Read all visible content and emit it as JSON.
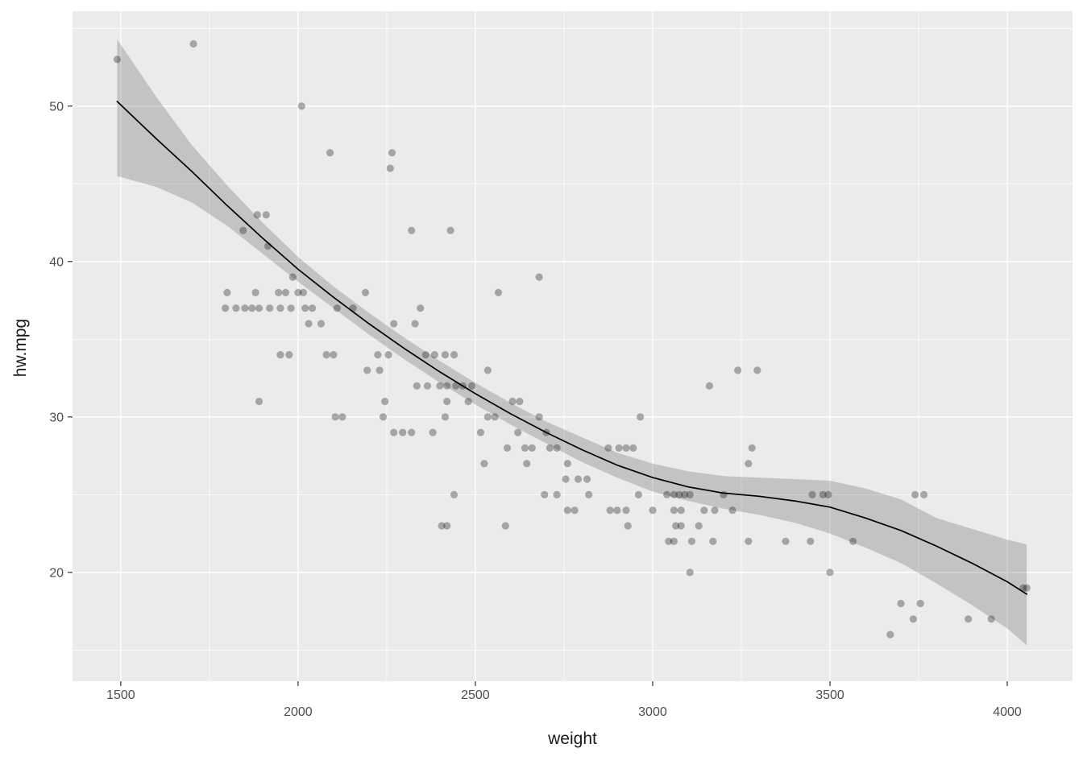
{
  "chart_data": {
    "type": "scatter",
    "title": "",
    "xlabel": "weight",
    "ylabel": "hw.mpg",
    "x_domain": [
      1364,
      4184
    ],
    "y_domain": [
      13,
      56.1
    ],
    "x_ticks": {
      "major": [
        1500,
        2000,
        2500,
        3000,
        3500,
        4000
      ],
      "labels": [
        "1500",
        "2000",
        "2500",
        "3000",
        "3500",
        "4000"
      ],
      "label_rows": [
        0,
        1,
        0,
        1,
        0,
        1
      ],
      "minor": [
        1750,
        2250,
        2750,
        3250,
        3750
      ]
    },
    "y_ticks": {
      "major": [
        20,
        30,
        40,
        50
      ],
      "labels": [
        "20",
        "30",
        "40",
        "50"
      ],
      "minor": [
        15,
        25,
        35,
        45,
        55
      ]
    },
    "legend": null,
    "grid": "on",
    "points": [
      [
        1490,
        53
      ],
      [
        1705,
        54
      ],
      [
        2010,
        50
      ],
      [
        2090,
        47
      ],
      [
        2265,
        47
      ],
      [
        2260,
        46
      ],
      [
        1885,
        43
      ],
      [
        1910,
        43
      ],
      [
        1845,
        42
      ],
      [
        2320,
        42
      ],
      [
        2430,
        42
      ],
      [
        1915,
        41
      ],
      [
        1985,
        39
      ],
      [
        2680,
        39
      ],
      [
        1800,
        38
      ],
      [
        1880,
        38
      ],
      [
        1945,
        38
      ],
      [
        1965,
        38
      ],
      [
        2000,
        38
      ],
      [
        2015,
        38
      ],
      [
        2190,
        38
      ],
      [
        2565,
        38
      ],
      [
        1795,
        37
      ],
      [
        1825,
        37
      ],
      [
        1850,
        37
      ],
      [
        1870,
        37
      ],
      [
        1890,
        37
      ],
      [
        1920,
        37
      ],
      [
        1950,
        37
      ],
      [
        1980,
        37
      ],
      [
        2020,
        37
      ],
      [
        2040,
        37
      ],
      [
        2110,
        37
      ],
      [
        2155,
        37
      ],
      [
        2345,
        37
      ],
      [
        2030,
        36
      ],
      [
        2065,
        36
      ],
      [
        2270,
        36
      ],
      [
        2330,
        36
      ],
      [
        1950,
        34
      ],
      [
        1975,
        34
      ],
      [
        2080,
        34
      ],
      [
        2100,
        34
      ],
      [
        2225,
        34
      ],
      [
        2255,
        34
      ],
      [
        2360,
        34
      ],
      [
        2385,
        34
      ],
      [
        2415,
        34
      ],
      [
        2440,
        34
      ],
      [
        2195,
        33
      ],
      [
        2230,
        33
      ],
      [
        2535,
        33
      ],
      [
        3240,
        33
      ],
      [
        3295,
        33
      ],
      [
        2335,
        32
      ],
      [
        2365,
        32
      ],
      [
        2400,
        32
      ],
      [
        2420,
        32
      ],
      [
        2445,
        32
      ],
      [
        2465,
        32
      ],
      [
        2490,
        32
      ],
      [
        3160,
        32
      ],
      [
        1890,
        31
      ],
      [
        2245,
        31
      ],
      [
        2420,
        31
      ],
      [
        2480,
        31
      ],
      [
        2605,
        31
      ],
      [
        2625,
        31
      ],
      [
        2105,
        30
      ],
      [
        2125,
        30
      ],
      [
        2240,
        30
      ],
      [
        2415,
        30
      ],
      [
        2535,
        30
      ],
      [
        2555,
        30
      ],
      [
        2680,
        30
      ],
      [
        2965,
        30
      ],
      [
        2270,
        29
      ],
      [
        2295,
        29
      ],
      [
        2320,
        29
      ],
      [
        2380,
        29
      ],
      [
        2515,
        29
      ],
      [
        2620,
        29
      ],
      [
        2700,
        29
      ],
      [
        2590,
        28
      ],
      [
        2640,
        28
      ],
      [
        2660,
        28
      ],
      [
        2710,
        28
      ],
      [
        2730,
        28
      ],
      [
        2875,
        28
      ],
      [
        2905,
        28
      ],
      [
        2925,
        28
      ],
      [
        2945,
        28
      ],
      [
        3280,
        28
      ],
      [
        2525,
        27
      ],
      [
        2645,
        27
      ],
      [
        2760,
        27
      ],
      [
        3270,
        27
      ],
      [
        2755,
        26
      ],
      [
        2790,
        26
      ],
      [
        2815,
        26
      ],
      [
        2440,
        25
      ],
      [
        2695,
        25
      ],
      [
        2730,
        25
      ],
      [
        2820,
        25
      ],
      [
        2960,
        25
      ],
      [
        3040,
        25
      ],
      [
        3060,
        25
      ],
      [
        3075,
        25
      ],
      [
        3090,
        25
      ],
      [
        3105,
        25
      ],
      [
        3200,
        25
      ],
      [
        3450,
        25
      ],
      [
        3480,
        25
      ],
      [
        3495,
        25
      ],
      [
        3740,
        25
      ],
      [
        3765,
        25
      ],
      [
        2760,
        24
      ],
      [
        2780,
        24
      ],
      [
        2880,
        24
      ],
      [
        2900,
        24
      ],
      [
        2925,
        24
      ],
      [
        3000,
        24
      ],
      [
        3060,
        24
      ],
      [
        3080,
        24
      ],
      [
        3145,
        24
      ],
      [
        3175,
        24
      ],
      [
        3225,
        24
      ],
      [
        2405,
        23
      ],
      [
        2420,
        23
      ],
      [
        2585,
        23
      ],
      [
        2930,
        23
      ],
      [
        3065,
        23
      ],
      [
        3080,
        23
      ],
      [
        3130,
        23
      ],
      [
        3045,
        22
      ],
      [
        3060,
        22
      ],
      [
        3110,
        22
      ],
      [
        3170,
        22
      ],
      [
        3270,
        22
      ],
      [
        3375,
        22
      ],
      [
        3445,
        22
      ],
      [
        3565,
        22
      ],
      [
        3105,
        20
      ],
      [
        3500,
        20
      ],
      [
        3700,
        18
      ],
      [
        3755,
        18
      ],
      [
        3735,
        17
      ],
      [
        3890,
        17
      ],
      [
        3955,
        17
      ],
      [
        3670,
        16
      ],
      [
        4045,
        19
      ],
      [
        4055,
        19
      ]
    ],
    "smooth": {
      "x": [
        1490,
        1600,
        1700,
        1800,
        1900,
        2000,
        2100,
        2200,
        2300,
        2400,
        2500,
        2600,
        2700,
        2800,
        2900,
        3000,
        3100,
        3200,
        3300,
        3400,
        3500,
        3600,
        3700,
        3800,
        3900,
        4000,
        4055
      ],
      "line": [
        50.3,
        47.9,
        45.8,
        43.6,
        41.5,
        39.5,
        37.7,
        36.0,
        34.4,
        32.9,
        31.5,
        30.2,
        29.0,
        27.9,
        26.9,
        26.1,
        25.5,
        25.1,
        24.9,
        24.6,
        24.2,
        23.5,
        22.7,
        21.7,
        20.6,
        19.4,
        18.6
      ],
      "upper": [
        54.3,
        50.6,
        47.5,
        44.9,
        42.5,
        40.3,
        38.4,
        36.7,
        35.1,
        33.6,
        32.2,
        30.9,
        29.7,
        28.7,
        27.7,
        27.0,
        26.5,
        26.2,
        26.1,
        26.0,
        25.9,
        25.4,
        24.7,
        23.5,
        22.8,
        22.1,
        21.8
      ],
      "lower": [
        45.5,
        44.8,
        43.8,
        42.3,
        40.5,
        38.7,
        37.0,
        35.3,
        33.7,
        32.2,
        30.8,
        29.5,
        28.3,
        27.1,
        26.1,
        25.2,
        24.6,
        24.1,
        23.7,
        23.2,
        22.5,
        21.6,
        20.6,
        19.3,
        17.9,
        16.4,
        15.3
      ]
    },
    "style": {
      "panel_bg": "#EBEBEB",
      "grid_color": "#FFFFFF",
      "point_color": "#000000",
      "point_alpha": 0.3,
      "point_radius": 4.6,
      "line_color": "#000000",
      "line_width": 1.7,
      "ribbon_color": "#000000",
      "ribbon_alpha": 0.17,
      "tick_color": "#333333",
      "tick_label_color": "#4D4D4D",
      "tick_label_size": 16
    }
  }
}
